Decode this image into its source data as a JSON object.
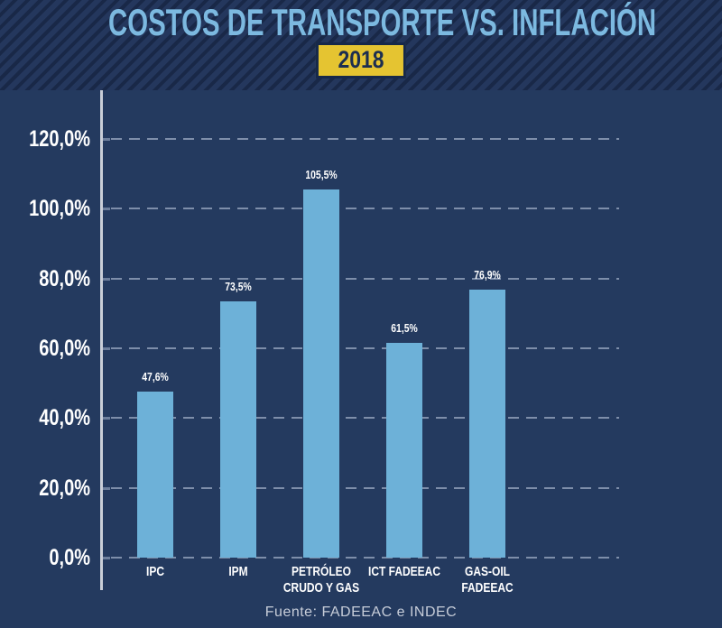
{
  "header": {
    "title": "COSTOS DE TRANSPORTE VS. INFLACIÓN",
    "year_badge": "2018"
  },
  "colors": {
    "background": "#24375D",
    "background_stripe": "#18294C",
    "panel": "#243A5F",
    "bar": "#6DB1D8",
    "title_text": "#7CB9E0",
    "badge_bg": "#E5C431",
    "badge_text": "#1C2E50",
    "axis_line": "#C9CED8",
    "grid_line": "#C8D4E8",
    "label_text": "#FFFFFF",
    "source_text": "#C7CDD9"
  },
  "chart_data": {
    "type": "bar",
    "title": "COSTOS DE TRANSPORTE VS. INFLACIÓN",
    "subtitle": "2018",
    "categories": [
      [
        "IPC"
      ],
      [
        "IPM"
      ],
      [
        "PETRÓLEO",
        "CRUDO Y GAS"
      ],
      [
        "ICT FADEEAC"
      ],
      [
        "GAS-OIL",
        "FADEEAC"
      ]
    ],
    "values": [
      47.6,
      73.5,
      105.5,
      61.5,
      76.9
    ],
    "value_labels": [
      "47,6%",
      "73,5%",
      "105,5%",
      "61,5%",
      "76,9%"
    ],
    "y_ticks": [
      0,
      20,
      40,
      60,
      80,
      100,
      120
    ],
    "y_tick_labels": [
      "0,0%",
      "20,0%",
      "40,0%",
      "60,0%",
      "80,0%",
      "100,0%",
      "120,0%"
    ],
    "ylim": [
      0,
      133
    ],
    "xlabel": "",
    "ylabel": "",
    "grid": "dashed horizontal",
    "legend": "none"
  },
  "footer": {
    "source": "Fuente: FADEEAC e INDEC"
  }
}
